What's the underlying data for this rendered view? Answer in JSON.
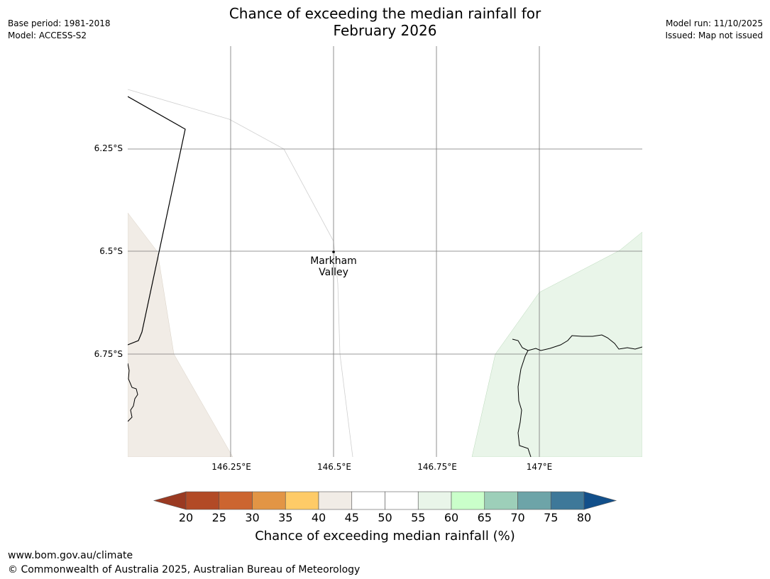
{
  "header": {
    "title_line1": "Chance of exceeding the median rainfall for",
    "title_line2": "February 2026",
    "base_period": "Base period: 1981-2018",
    "model": "Model: ACCESS-S2",
    "model_run": "Model run: 11/10/2025",
    "issued": "Issued: Map not issued"
  },
  "map": {
    "lat_labels": [
      "6.25°S",
      "6.5°S",
      "6.75°S"
    ],
    "lon_labels": [
      "146.25°E",
      "146.5°E",
      "146.75°E",
      "147°E"
    ],
    "place": {
      "name_line1": "Markham",
      "name_line2": "Valley"
    },
    "colors": {
      "tan_region": "#f1ece6",
      "green_region": "#e9f5e9",
      "grid": "#777777",
      "coast": "#000000"
    }
  },
  "colorbar": {
    "label": "Chance of exceeding median rainfall (%)",
    "ticks": [
      "20",
      "25",
      "30",
      "35",
      "40",
      "45",
      "50",
      "55",
      "60",
      "65",
      "70",
      "75",
      "80"
    ],
    "under_color": "#9a3a22",
    "over_color": "#124f8a",
    "colors": [
      "#b24a26",
      "#cc6530",
      "#e29545",
      "#fecb67",
      "#f1ece6",
      "#ffffff",
      "#ffffff",
      "#e9f5e9",
      "#caffca",
      "#9dcfb9",
      "#6da4a8",
      "#3e7899"
    ]
  },
  "footer": {
    "url": "www.bom.gov.au/climate",
    "copyright": "© Commonwealth of Australia 2025, Australian Bureau of Meteorology"
  }
}
